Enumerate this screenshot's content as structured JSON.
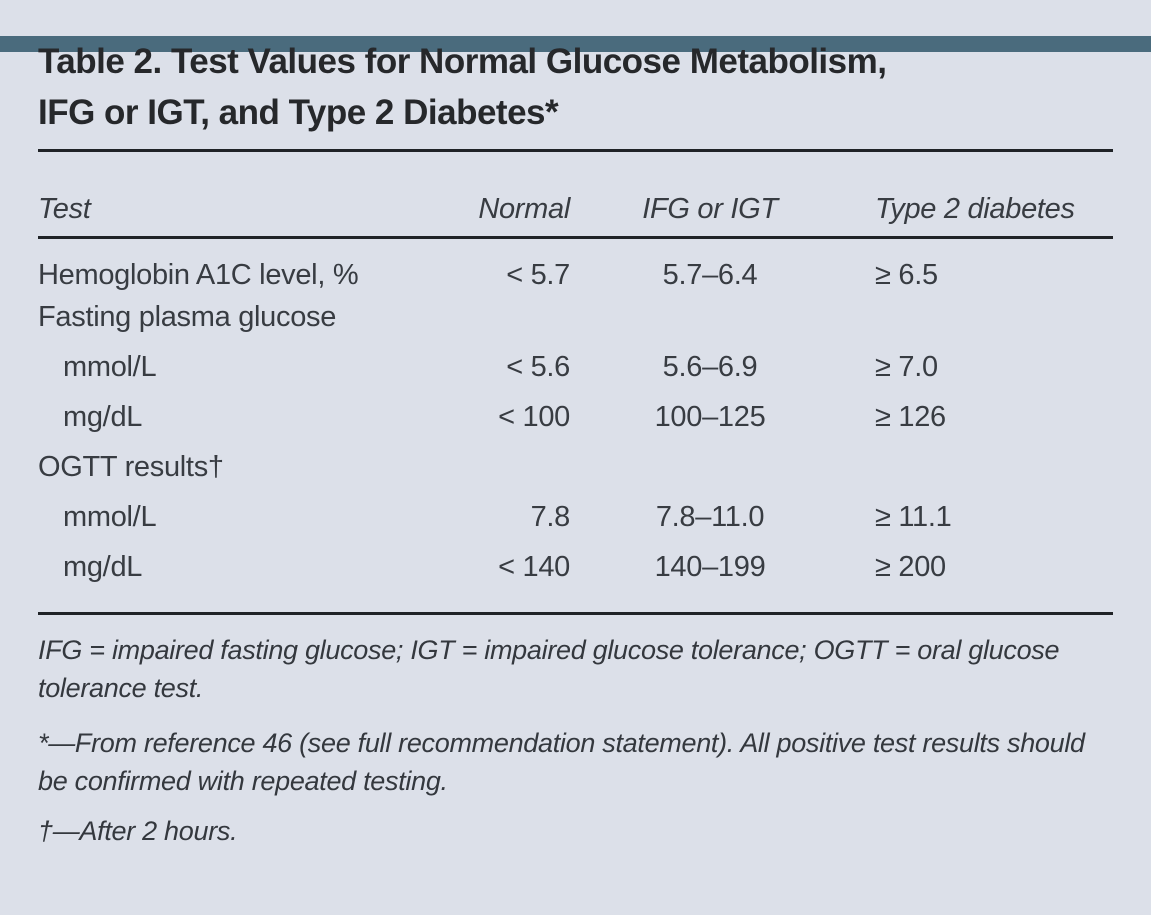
{
  "theme": {
    "accent_bar_color": "#4a6b7d",
    "background_color": "#dce0e9",
    "rule_color": "#202327",
    "title_color": "#26282b",
    "text_color": "#383c42"
  },
  "title": {
    "line1": "Table 2. Test Values for Normal Glucose Metabolism,",
    "line2": "IFG or IGT, and Type 2 Diabetes*"
  },
  "table": {
    "columns": [
      "Test",
      "Normal",
      "IFG or IGT",
      "Type 2 diabetes"
    ],
    "rows": [
      {
        "test": "Hemoglobin A1C level, %",
        "normal": "< 5.7",
        "ifg_igt": "5.7–6.4",
        "diabetes": "≥ 6.5"
      },
      {
        "test": "Fasting plasma glucose",
        "normal": "",
        "ifg_igt": "",
        "diabetes": ""
      },
      {
        "test": "mmol/L",
        "normal": "< 5.6",
        "ifg_igt": "5.6–6.9",
        "diabetes": "≥ 7.0"
      },
      {
        "test": "mg/dL",
        "normal": "< 100",
        "ifg_igt": "100–125",
        "diabetes": "≥ 126"
      },
      {
        "test": "OGTT results†",
        "normal": "",
        "ifg_igt": "",
        "diabetes": ""
      },
      {
        "test": "mmol/L",
        "normal": "7.8",
        "ifg_igt": "7.8–11.0",
        "diabetes": "≥ 11.1"
      },
      {
        "test": "mg/dL",
        "normal": "< 140",
        "ifg_igt": "140–199",
        "diabetes": "≥ 200"
      }
    ]
  },
  "footnotes": {
    "abbreviations": "IFG = impaired fasting glucose; IGT = impaired glucose tolerance; OGTT = oral glucose tolerance test.",
    "asterisk": "*—From reference 46 (see full recommendation statement). All positive test results should be confirmed with repeated testing.",
    "dagger": "†—After 2 hours."
  }
}
